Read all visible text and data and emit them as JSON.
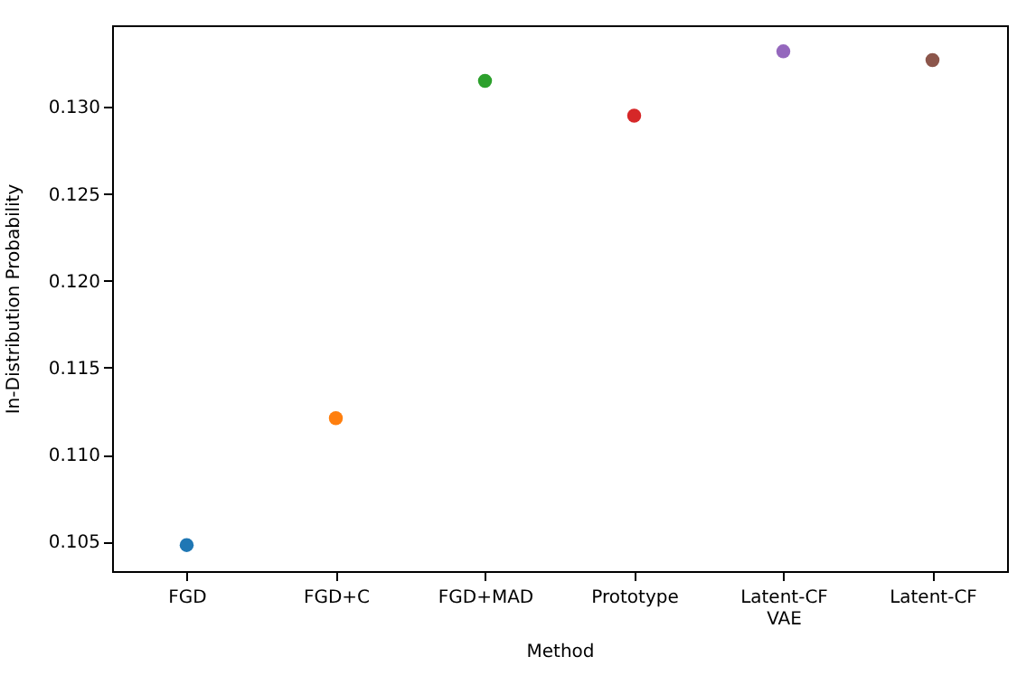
{
  "chart_data": {
    "type": "scatter",
    "xlabel": "Method",
    "ylabel": "In-Distribution Probability",
    "categories": [
      "FGD",
      "FGD+C",
      "FGD+MAD",
      "Prototype",
      "Latent-CF\nVAE",
      "Latent-CF"
    ],
    "values": [
      0.1048,
      0.1121,
      0.1315,
      0.1295,
      0.1332,
      0.1327
    ],
    "colors": [
      "#1f77b4",
      "#ff7f0e",
      "#2ca02c",
      "#d62728",
      "#9467bd",
      "#8c564b"
    ],
    "ylim": [
      0.1033,
      0.1347
    ],
    "yticks": [
      0.105,
      {
        "value": 0.11,
        "label": "0.110"
      },
      0.115,
      {
        "value": 0.12,
        "label": "0.120"
      },
      0.125,
      {
        "value": 0.13,
        "label": "0.130"
      }
    ],
    "marker": "circle",
    "grid": false
  }
}
